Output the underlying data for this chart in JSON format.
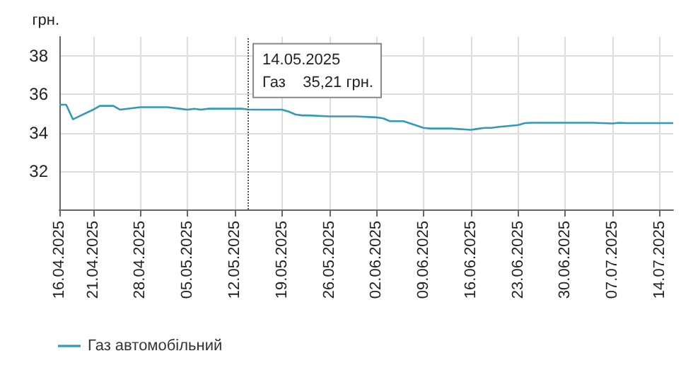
{
  "chart_data": {
    "type": "line",
    "ylabel": "грн.",
    "x": [
      "2025-04-16",
      "2025-04-17",
      "2025-04-18",
      "2025-04-21",
      "2025-04-22",
      "2025-04-23",
      "2025-04-24",
      "2025-04-25",
      "2025-04-28",
      "2025-04-29",
      "2025-04-30",
      "2025-05-01",
      "2025-05-02",
      "2025-05-05",
      "2025-05-06",
      "2025-05-07",
      "2025-05-08",
      "2025-05-09",
      "2025-05-12",
      "2025-05-13",
      "2025-05-14",
      "2025-05-15",
      "2025-05-16",
      "2025-05-19",
      "2025-05-20",
      "2025-05-21",
      "2025-05-22",
      "2025-05-23",
      "2025-05-26",
      "2025-05-27",
      "2025-05-28",
      "2025-05-29",
      "2025-05-30",
      "2025-06-02",
      "2025-06-03",
      "2025-06-04",
      "2025-06-05",
      "2025-06-06",
      "2025-06-09",
      "2025-06-10",
      "2025-06-11",
      "2025-06-12",
      "2025-06-13",
      "2025-06-16",
      "2025-06-17",
      "2025-06-18",
      "2025-06-19",
      "2025-06-20",
      "2025-06-23",
      "2025-06-24",
      "2025-06-25",
      "2025-06-26",
      "2025-06-27",
      "2025-06-30",
      "2025-07-01",
      "2025-07-02",
      "2025-07-03",
      "2025-07-04",
      "2025-07-07",
      "2025-07-08",
      "2025-07-09",
      "2025-07-10",
      "2025-07-11",
      "2025-07-14",
      "2025-07-15",
      "2025-07-16"
    ],
    "series": [
      {
        "name": "Газ автомобільний",
        "color": "#3399bb",
        "values": [
          35.46,
          35.46,
          34.7,
          35.2,
          35.4,
          35.4,
          35.4,
          35.2,
          35.33,
          35.33,
          35.33,
          35.33,
          35.33,
          35.2,
          35.25,
          35.2,
          35.25,
          35.25,
          35.25,
          35.25,
          35.21,
          35.2,
          35.2,
          35.2,
          35.1,
          34.95,
          34.9,
          34.9,
          34.85,
          34.85,
          34.85,
          34.85,
          34.85,
          34.8,
          34.75,
          34.6,
          34.6,
          34.6,
          34.25,
          34.22,
          34.22,
          34.22,
          34.22,
          34.15,
          34.2,
          34.25,
          34.25,
          34.3,
          34.4,
          34.5,
          34.52,
          34.52,
          34.52,
          34.52,
          34.52,
          34.52,
          34.52,
          34.52,
          34.48,
          34.52,
          34.5,
          34.5,
          34.5,
          34.5,
          34.5,
          34.5
        ]
      }
    ],
    "xticks": [
      {
        "value": "2025-04-16",
        "label": "16.04.2025"
      },
      {
        "value": "2025-04-21",
        "label": "21.04.2025"
      },
      {
        "value": "2025-04-28",
        "label": "28.04.2025"
      },
      {
        "value": "2025-05-05",
        "label": "05.05.2025"
      },
      {
        "value": "2025-05-12",
        "label": "12.05.2025"
      },
      {
        "value": "2025-05-19",
        "label": "19.05.2025"
      },
      {
        "value": "2025-05-26",
        "label": "26.05.2025"
      },
      {
        "value": "2025-06-02",
        "label": "02.06.2025"
      },
      {
        "value": "2025-06-09",
        "label": "09.06.2025"
      },
      {
        "value": "2025-06-16",
        "label": "16.06.2025"
      },
      {
        "value": "2025-06-23",
        "label": "23.06.2025"
      },
      {
        "value": "2025-06-30",
        "label": "30.06.2025"
      },
      {
        "value": "2025-07-07",
        "label": "07.07.2025"
      },
      {
        "value": "2025-07-14",
        "label": "14.07.2025"
      }
    ],
    "xlim": [
      "2025-04-16",
      "2025-07-16"
    ],
    "ylim": [
      30,
      39
    ],
    "yticks": [
      32,
      34,
      36,
      38
    ],
    "ref_lines": [
      {
        "axis": "x",
        "value": "2025-05-14",
        "label": null,
        "color": "#555555",
        "line_style": "dotted"
      }
    ],
    "annotations": [
      {
        "text": "14.05.2025\nГаз    35,21 грн.",
        "x": "2025-05-14",
        "y": 35.21
      }
    ],
    "grid": true,
    "legend": "bottom left",
    "marker": "none",
    "line_style": "solid"
  }
}
